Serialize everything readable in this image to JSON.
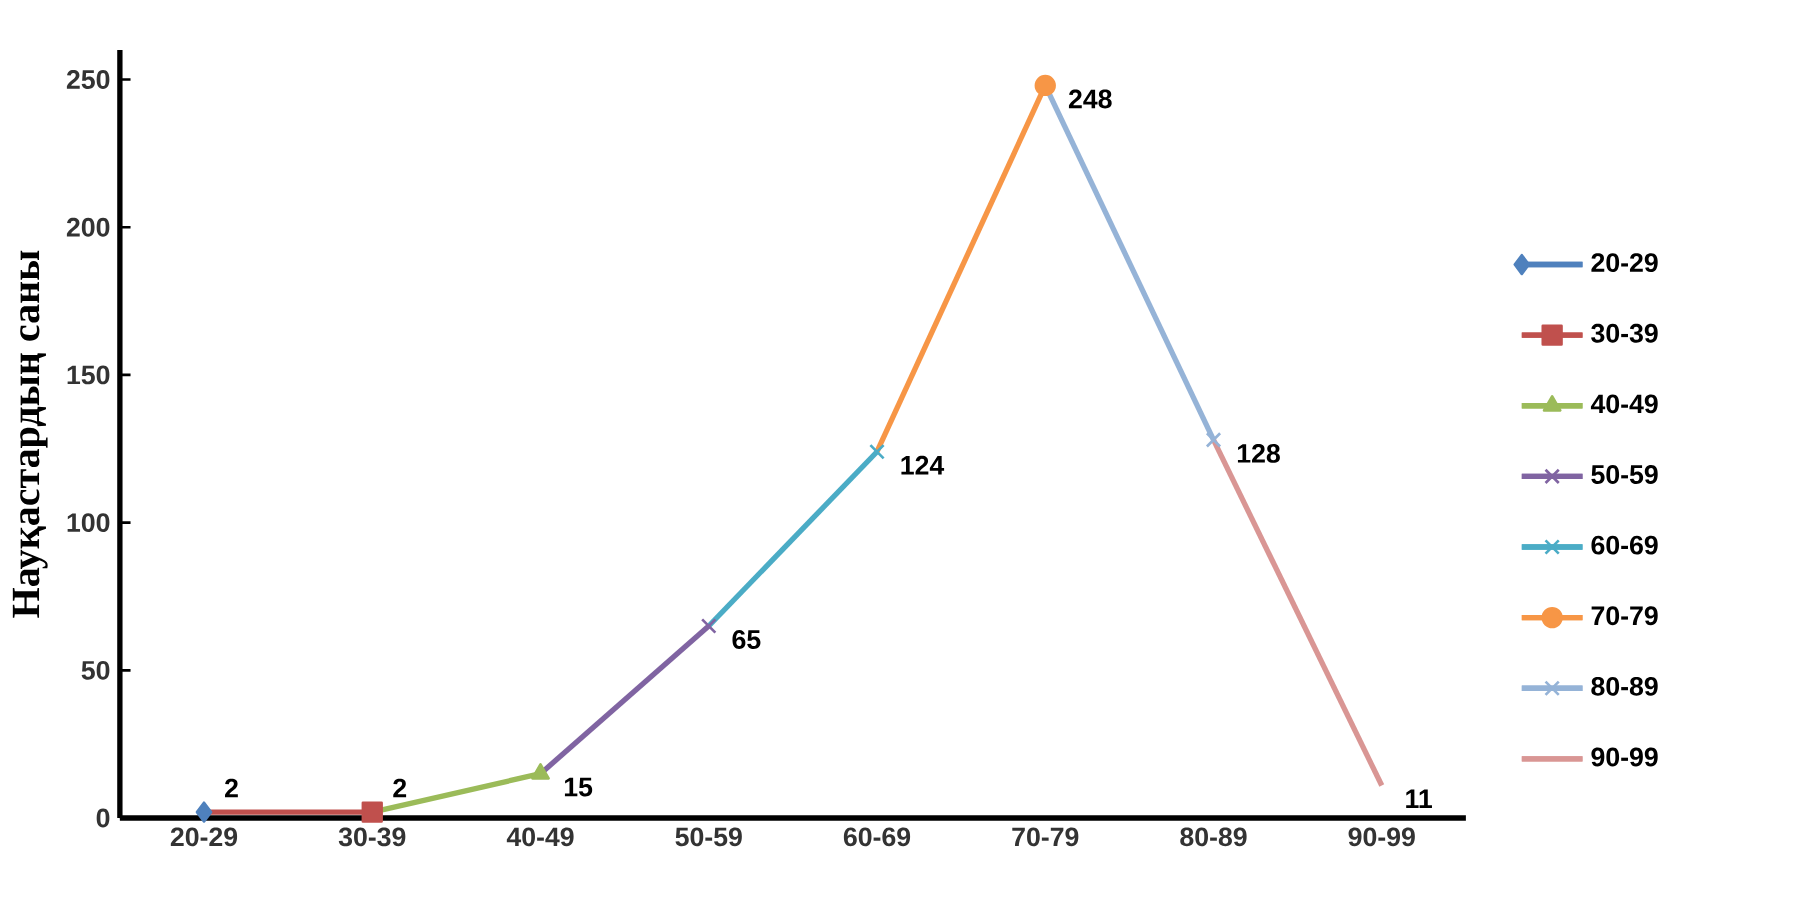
{
  "chart_data": {
    "type": "line",
    "ylabel": "Науқастардың саны",
    "categories": [
      "20-29",
      "30-39",
      "40-49",
      "50-59",
      "60-69",
      "70-79",
      "80-89",
      "90-99"
    ],
    "ylim": [
      0,
      260
    ],
    "yticks": [
      0,
      50,
      100,
      150,
      200,
      250
    ],
    "legend": "right",
    "grid": false,
    "series": [
      {
        "name": "20-29",
        "color": "#4f81bd",
        "marker": "diamond",
        "values": [
          2,
          null,
          null,
          null,
          null,
          null,
          null,
          null
        ],
        "value_labels": [
          "2",
          null,
          null,
          null,
          null,
          null,
          null,
          null
        ]
      },
      {
        "name": "30-39",
        "color": "#c0504d",
        "marker": "square",
        "values": [
          2,
          2,
          null,
          null,
          null,
          null,
          null,
          null
        ],
        "value_labels": [
          null,
          "2",
          null,
          null,
          null,
          null,
          null,
          null
        ]
      },
      {
        "name": "40-49",
        "color": "#9bbb59",
        "marker": "triangle",
        "values": [
          null,
          2,
          15,
          null,
          null,
          null,
          null,
          null
        ],
        "value_labels": [
          null,
          null,
          "15",
          null,
          null,
          null,
          null,
          null
        ]
      },
      {
        "name": "50-59",
        "color": "#8064a2",
        "marker": "cross",
        "values": [
          null,
          null,
          15,
          65,
          null,
          null,
          null,
          null
        ],
        "value_labels": [
          null,
          null,
          null,
          "65",
          null,
          null,
          null,
          null
        ]
      },
      {
        "name": "60-69",
        "color": "#4bacc6",
        "marker": "cross",
        "values": [
          null,
          null,
          null,
          65,
          124,
          null,
          null,
          null
        ],
        "value_labels": [
          null,
          null,
          null,
          null,
          "124",
          null,
          null,
          null
        ]
      },
      {
        "name": "70-79",
        "color": "#f79646",
        "marker": "circle",
        "values": [
          null,
          null,
          null,
          null,
          124,
          248,
          null,
          null
        ],
        "value_labels": [
          null,
          null,
          null,
          null,
          null,
          "248",
          null,
          null
        ]
      },
      {
        "name": "80-89",
        "color": "#95b3d7",
        "marker": "cross",
        "values": [
          null,
          null,
          null,
          null,
          null,
          248,
          128,
          null
        ],
        "value_labels": [
          null,
          null,
          null,
          null,
          null,
          null,
          "128",
          null
        ]
      },
      {
        "name": "90-99",
        "color": "#d99694",
        "marker": "none",
        "values": [
          null,
          null,
          null,
          null,
          null,
          null,
          128,
          11
        ],
        "value_labels": [
          null,
          null,
          null,
          null,
          null,
          null,
          null,
          "11"
        ]
      }
    ]
  }
}
